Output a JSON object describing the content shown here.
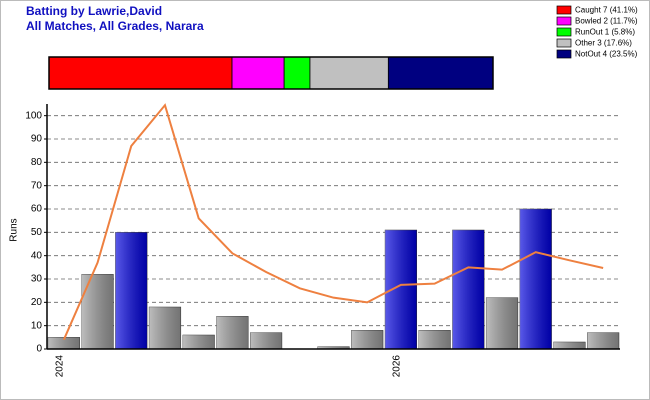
{
  "chart_data": {
    "type": "bar",
    "title": "Batting by Lawrie,David",
    "subtitle": "All Matches, All Grades, Narara",
    "y_label": "Runs",
    "summary": {
      "labels": [
        "Caught 7 (41.1%)",
        "Bowled 2 (11.7%)",
        "RunOut 1 (5.8%)",
        "Other 3 (17.6%)",
        "NotOut 4 (23.5%)"
      ],
      "values": [
        41.1,
        11.7,
        5.8,
        17.6,
        23.5
      ],
      "colors": [
        "#ff0000",
        "#ff00ff",
        "#00ff00",
        "#c0c0c0",
        "#000080"
      ]
    },
    "categories": [
      "2024",
      null,
      null,
      null,
      null,
      null,
      null,
      null,
      null,
      null,
      "2026",
      null,
      null,
      null,
      null,
      null,
      null
    ],
    "values": [
      5,
      32,
      50,
      18,
      6,
      14,
      7,
      0,
      1,
      8,
      51,
      8,
      51,
      22,
      60,
      3,
      7
    ],
    "colors": [
      "#9a9a9a",
      "#9a9a9a",
      "#0000dd",
      "#9a9a9a",
      "#9a9a9a",
      "#9a9a9a",
      "#9a9a9a",
      "#9a9a9a",
      "#9a9a9a",
      "#9a9a9a",
      "#0000dd",
      "#9a9a9a",
      "#0000dd",
      "#9a9a9a",
      "#0000dd",
      "#9a9a9a",
      "#9a9a9a"
    ],
    "line": {
      "color": "#ee8040",
      "values": [
        4,
        37,
        87,
        104.5,
        56,
        41,
        33,
        26,
        22,
        20,
        27.5,
        28,
        35,
        34,
        41.5,
        38,
        34.7
      ]
    },
    "ylim": [
      0,
      105
    ],
    "yticks": [
      0,
      10,
      20,
      30,
      40,
      50,
      60,
      70,
      80,
      90,
      100
    ],
    "grid": true
  }
}
